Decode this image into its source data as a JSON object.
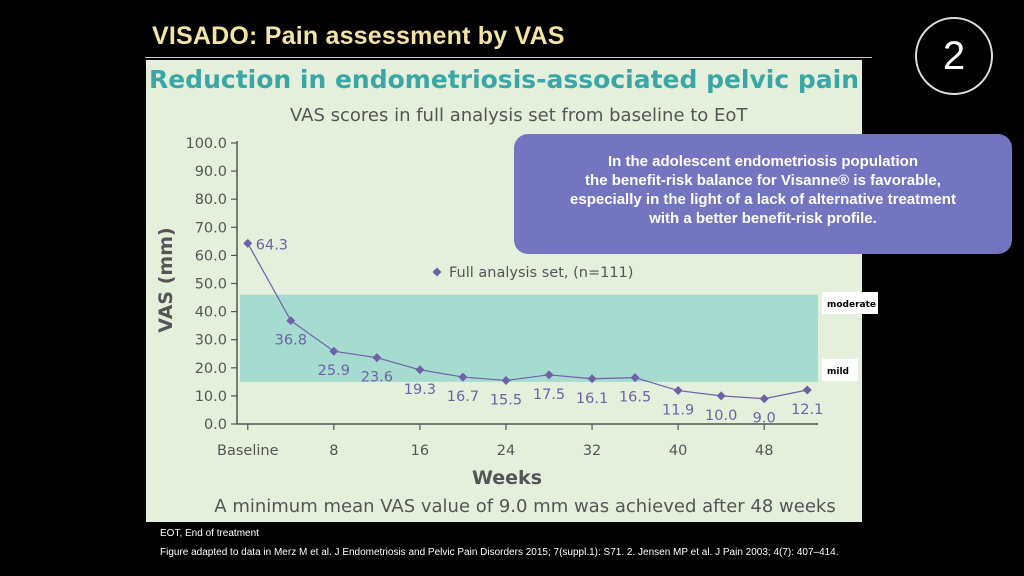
{
  "slide": {
    "title": "VISADO: Pain assessment by VAS",
    "page_number": "2"
  },
  "panel": {
    "title": "Reduction in endometriosis-associated pelvic pain",
    "subtitle": "VAS scores in full analysis set from baseline to EoT",
    "conclusion": "A minimum mean VAS value of 9.0 mm was achieved after 48 weeks"
  },
  "callout": {
    "lines": [
      "In the adolescent endometriosis population",
      "the benefit-risk balance for Visanne® is favorable,",
      "especially in the light of a lack of alternative treatment",
      "with a better benefit-risk profile."
    ]
  },
  "footnotes": {
    "abbrev": "EOT, End of treatment",
    "reference": "Figure adapted to data in Merz M et al. J Endometriosis and Pelvic Pain Disorders 2015; 7(suppl.1): S71. 2. Jensen MP et al. J Pain 2003; 4(7): 407–414."
  },
  "colors": {
    "series": "#6d62a6",
    "band": "#a6dbd0",
    "panel_title": "#3aa6a5",
    "callout": "#7375c0"
  },
  "chart_data": {
    "type": "line",
    "xlabel": "Weeks",
    "ylabel": "VAS (mm)",
    "ylim": [
      0,
      100
    ],
    "xlim": [
      -1,
      53
    ],
    "yticks": [
      "0.0",
      "10.0",
      "20.0",
      "30.0",
      "40.0",
      "50.0",
      "60.0",
      "70.0",
      "80.0",
      "90.0",
      "100.0"
    ],
    "xticks": [
      {
        "value": 0,
        "label": "Baseline"
      },
      {
        "value": 8,
        "label": "8"
      },
      {
        "value": 16,
        "label": "16"
      },
      {
        "value": 24,
        "label": "24"
      },
      {
        "value": 32,
        "label": "32"
      },
      {
        "value": 40,
        "label": "40"
      },
      {
        "value": 48,
        "label": "48"
      }
    ],
    "legend": "Full analysis set, (n=111)",
    "bands": [
      {
        "name": "moderate",
        "from": 30,
        "to": 46
      },
      {
        "name": "mild",
        "from": 15,
        "to": 30
      }
    ],
    "series": [
      {
        "name": "Full analysis set, (n=111)",
        "x": [
          0,
          4,
          8,
          12,
          16,
          20,
          24,
          28,
          32,
          36,
          40,
          44,
          48,
          52
        ],
        "values": [
          64.3,
          36.8,
          25.9,
          23.6,
          19.3,
          16.7,
          15.5,
          17.5,
          16.1,
          16.5,
          11.9,
          10.0,
          9.0,
          12.1
        ],
        "labels": [
          "64.3",
          "36.8",
          "25.9",
          "23.6",
          "19.3",
          "16.7",
          "15.5",
          "17.5",
          "16.1",
          "16.5",
          "11.9",
          "10.0",
          "9.0",
          "12.1"
        ]
      }
    ]
  }
}
